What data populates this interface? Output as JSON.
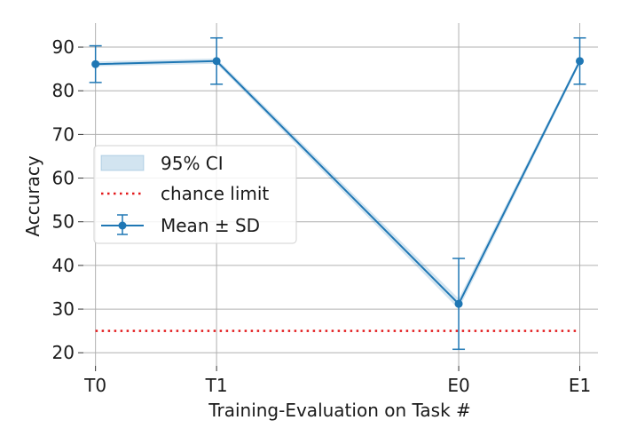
{
  "chart_data": {
    "type": "line",
    "xlabel": "Training-Evaluation on Task #",
    "ylabel": "Accuracy",
    "categories": [
      "T0",
      "T1",
      "E0",
      "E1"
    ],
    "x": [
      0,
      1,
      3,
      4
    ],
    "xlim": [
      -0.1,
      4.15
    ],
    "ylim": [
      17,
      95.5
    ],
    "yticks": [
      20,
      30,
      40,
      50,
      60,
      70,
      80,
      90
    ],
    "grid": true,
    "legend_position": "center-left",
    "series": [
      {
        "name": "Mean ± SD",
        "kind": "errorbar",
        "color": "#1f77b4",
        "mean": [
          86.1,
          86.8,
          31.2,
          86.8
        ],
        "sd": [
          4.2,
          5.3,
          10.4,
          5.3
        ]
      },
      {
        "name": "95% CI",
        "kind": "band",
        "color": "#1f77b4",
        "lower": [
          85.6,
          86.2,
          30.0,
          86.2
        ],
        "upper": [
          86.7,
          87.4,
          32.4,
          87.4
        ]
      },
      {
        "name": "chance limit",
        "kind": "hline",
        "color": "#e31a1c",
        "value": 25,
        "x_range": [
          0,
          4
        ]
      }
    ],
    "legend": [
      "95% CI",
      "chance limit",
      "Mean ± SD"
    ]
  }
}
